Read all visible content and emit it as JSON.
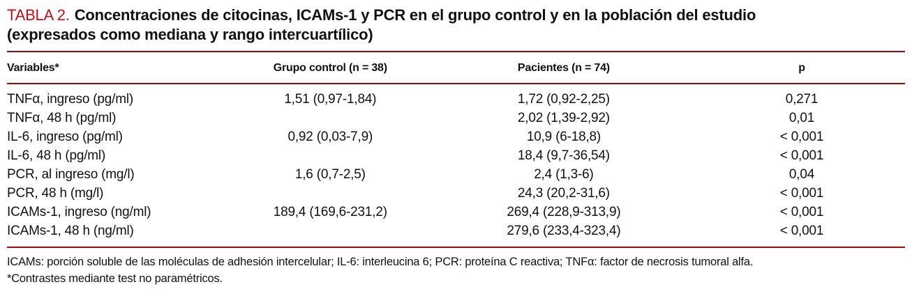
{
  "title": {
    "label": "TABLA 2.",
    "text": "Concentraciones de citocinas, ICAMs-1 y PCR en el grupo control y en la población del estudio\n(expresados como mediana y rango intercuartílico)"
  },
  "colors": {
    "title_red": "#b9121b",
    "rule_red": "#9b0a0f",
    "text_black": "#111111"
  },
  "table": {
    "headers": {
      "variables": "Variables*",
      "control": "Grupo control (n = 38)",
      "patients": "Pacientes (n = 74)",
      "p": "p"
    },
    "rows": [
      {
        "variable": "TNFα, ingreso (pg/ml)",
        "control": "1,51 (0,97-1,84)",
        "patients": "1,72 (0,92-2,25)",
        "p": "0,271"
      },
      {
        "variable": "TNFα, 48 h (pg/ml)",
        "control": "",
        "patients": "2,02 (1,39-2,92)",
        "p": "0,01"
      },
      {
        "variable": "IL-6, ingreso (pg/ml)",
        "control": "0,92 (0,03-7,9)",
        "patients": "10,9 (6-18,8)",
        "p": "< 0,001"
      },
      {
        "variable": "IL-6, 48 h (pg/ml)",
        "control": "",
        "patients": "18,4 (9,7-36,54)",
        "p": "< 0,001"
      },
      {
        "variable": "PCR, al ingreso (mg/l)",
        "control": "1,6 (0,7-2,5)",
        "patients": "2,4 (1,3-6)",
        "p": "0,04"
      },
      {
        "variable": "PCR, 48 h (mg/l)",
        "control": "",
        "patients": "24,3 (20,2-31,6)",
        "p": "< 0,001"
      },
      {
        "variable": "ICAMs-1, ingreso (ng/ml)",
        "control": "189,4 (169,6-231,2)",
        "patients": "269,4 (228,9-313,9)",
        "p": "< 0,001"
      },
      {
        "variable": "ICAMs-1, 48 h (ng/ml)",
        "control": "",
        "patients": "279,6 (233,4-323,4)",
        "p": "< 0,001"
      }
    ]
  },
  "footnotes": {
    "abbreviations": "ICAMs: porción soluble de las moléculas de adhesión intercelular; IL-6: interleucina 6; PCR: proteína C reactiva; TNFα: factor de necrosis tumoral alfa.",
    "contrast_note": "*Contrastes mediante test no paramétricos."
  }
}
